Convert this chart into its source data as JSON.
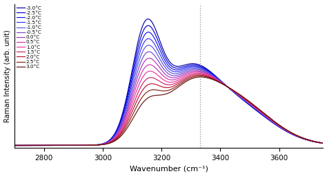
{
  "temperatures": [
    -3.0,
    -2.5,
    -2.0,
    -1.5,
    -1.0,
    -0.5,
    0.0,
    0.5,
    1.0,
    1.5,
    2.0,
    2.5,
    3.0
  ],
  "colors": [
    "#0000AA",
    "#0000CC",
    "#1111EE",
    "#3333EE",
    "#5555DD",
    "#7744CC",
    "#AA33BB",
    "#CC33AA",
    "#EE3399",
    "#CC2266",
    "#BB1133",
    "#882211",
    "#661111"
  ],
  "xmin": 2700,
  "xmax": 3750,
  "dashed_line_x": 3330,
  "xlabel": "Wavenumber (cm⁻¹)",
  "ylabel": "Raman Intensity (arb. unit)",
  "background_color": "#ffffff",
  "xticks": [
    2800,
    3000,
    3200,
    3400,
    3600
  ]
}
